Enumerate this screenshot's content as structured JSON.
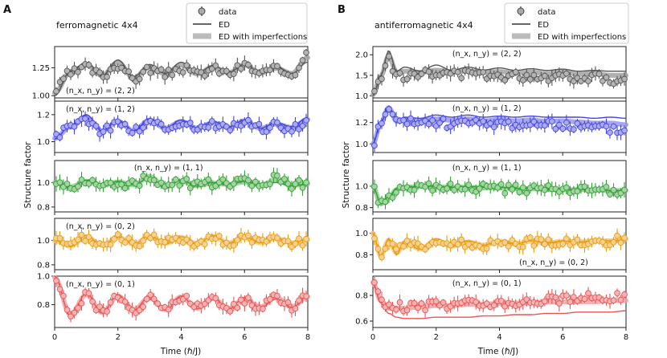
{
  "figure": {
    "panel_letters": [
      "A",
      "B"
    ],
    "legend": {
      "data_label": "data",
      "ed_label": "ED",
      "ed_imp_label": "ED with imperfections"
    },
    "ylabel": "Structure factor",
    "xlabel": "Time (ℏ/J)"
  },
  "chart_data": [
    {
      "type": "line",
      "title": "ferromagnetic 4x4",
      "xlabel": "Time (ℏ/J)",
      "ylabel": "Structure factor",
      "xlim": [
        0,
        8
      ],
      "x_ticks": [
        "0",
        "2",
        "4",
        "6",
        "8"
      ],
      "panels": [
        {
          "mode": "(n_x, n_y) = (2, 2)",
          "label_pos": "bottom-left",
          "ylim": [
            0.98,
            1.44
          ],
          "yticks": [
            1.0,
            1.25
          ],
          "ytick_labels": [
            "1.00",
            "1.25"
          ],
          "color": "#555555",
          "x": [
            0,
            0.5,
            1,
            1.5,
            2,
            2.5,
            3,
            3.5,
            4,
            4.5,
            5,
            5.5,
            6,
            6.5,
            7,
            7.5,
            8
          ],
          "ed": [
            1.0,
            1.22,
            1.3,
            1.18,
            1.32,
            1.17,
            1.28,
            1.2,
            1.3,
            1.2,
            1.27,
            1.21,
            1.28,
            1.21,
            1.26,
            1.2,
            1.3
          ],
          "data": [
            1.05,
            1.2,
            1.25,
            1.18,
            1.28,
            1.15,
            1.24,
            1.19,
            1.25,
            1.19,
            1.24,
            1.2,
            1.27,
            1.2,
            1.23,
            1.2,
            1.38
          ]
        },
        {
          "mode": "(n_x, n_y) = (1, 2)",
          "label_pos": "top-left",
          "ylim": [
            0.92,
            1.3
          ],
          "yticks": [
            1.0,
            1.2
          ],
          "ytick_labels": [
            "1.0",
            "1.2"
          ],
          "color": "#4444dd",
          "x": [
            0,
            0.5,
            1,
            1.5,
            2,
            2.5,
            3,
            3.5,
            4,
            4.5,
            5,
            5.5,
            6,
            6.5,
            7,
            7.5,
            8
          ],
          "ed": [
            1.02,
            1.12,
            1.2,
            1.08,
            1.16,
            1.08,
            1.17,
            1.1,
            1.16,
            1.1,
            1.15,
            1.11,
            1.16,
            1.1,
            1.14,
            1.11,
            1.18
          ],
          "data": [
            1.03,
            1.1,
            1.16,
            1.08,
            1.14,
            1.08,
            1.15,
            1.1,
            1.14,
            1.1,
            1.13,
            1.1,
            1.15,
            1.1,
            1.12,
            1.1,
            1.15
          ]
        },
        {
          "mode": "(n_x, n_y) = (1, 1)",
          "label_pos": "top-center",
          "ylim": [
            0.76,
            1.18
          ],
          "yticks": [
            0.8,
            1.0
          ],
          "ytick_labels": [
            "0.8",
            "1.0"
          ],
          "color": "#33a033",
          "x": [
            0,
            0.5,
            1,
            1.5,
            2,
            2.5,
            3,
            3.5,
            4,
            4.5,
            5,
            5.5,
            6,
            6.5,
            7,
            7.5,
            8
          ],
          "ed": [
            1.0,
            0.96,
            1.02,
            0.97,
            1.01,
            0.98,
            1.04,
            0.96,
            1.02,
            0.97,
            1.0,
            0.98,
            1.01,
            0.98,
            1.0,
            0.97,
            0.99
          ],
          "data": [
            1.0,
            0.97,
            1.0,
            0.98,
            1.0,
            0.98,
            1.06,
            0.97,
            1.0,
            0.98,
            0.99,
            0.99,
            1.0,
            0.98,
            1.04,
            0.98,
            0.99
          ]
        },
        {
          "mode": "(n_x, n_y) = (0, 2)",
          "label_pos": "top-left",
          "ylim": [
            0.76,
            1.18
          ],
          "yticks": [
            0.8,
            1.0
          ],
          "ytick_labels": [
            "0.8",
            "1.0"
          ],
          "color": "#e89b10",
          "x": [
            0,
            0.5,
            1,
            1.5,
            2,
            2.5,
            3,
            3.5,
            4,
            4.5,
            5,
            5.5,
            6,
            6.5,
            7,
            7.5,
            8
          ],
          "ed": [
            1.0,
            0.95,
            1.04,
            0.96,
            1.03,
            0.97,
            1.04,
            0.97,
            1.03,
            0.97,
            1.04,
            0.98,
            1.03,
            0.98,
            1.02,
            0.98,
            1.01
          ],
          "data": [
            0.99,
            0.96,
            1.02,
            0.96,
            1.02,
            0.97,
            1.02,
            0.98,
            1.02,
            0.98,
            1.02,
            0.98,
            1.02,
            0.98,
            1.01,
            0.98,
            1.0
          ]
        },
        {
          "mode": "(n_x, n_y) = (0, 1)",
          "label_pos": "top-left",
          "ylim": [
            0.64,
            1.0
          ],
          "yticks": [
            0.8,
            1.0
          ],
          "ytick_labels": [
            "0.8",
            "1.0"
          ],
          "color": "#e85555",
          "x": [
            0,
            0.5,
            1,
            1.5,
            2,
            2.5,
            3,
            3.5,
            4,
            4.5,
            5,
            5.5,
            6,
            6.5,
            7,
            7.5,
            8
          ],
          "ed": [
            1.0,
            0.72,
            0.88,
            0.74,
            0.87,
            0.76,
            0.86,
            0.76,
            0.86,
            0.77,
            0.85,
            0.77,
            0.85,
            0.78,
            0.84,
            0.78,
            0.86
          ],
          "data": [
            0.98,
            0.74,
            0.86,
            0.75,
            0.85,
            0.77,
            0.84,
            0.77,
            0.85,
            0.78,
            0.84,
            0.78,
            0.83,
            0.79,
            0.86,
            0.79,
            0.85
          ]
        }
      ]
    },
    {
      "type": "line",
      "title": "antiferromagnetic 4x4",
      "xlabel": "Time (ℏ/J)",
      "ylabel": "Structure factor",
      "xlim": [
        0,
        8
      ],
      "x_ticks": [
        "0",
        "2",
        "4",
        "6",
        "8"
      ],
      "panels": [
        {
          "mode": "(n_x, n_y) = (2, 2)",
          "label_pos": "top-center",
          "ylim": [
            0.95,
            2.2
          ],
          "yticks": [
            1.0,
            1.5,
            2.0
          ],
          "ytick_labels": [
            "1.0",
            "1.5",
            "2.0"
          ],
          "color": "#555555",
          "x": [
            0,
            0.25,
            0.5,
            0.75,
            1,
            1.5,
            2,
            2.5,
            3,
            3.5,
            4,
            4.5,
            5,
            5.5,
            6,
            6.5,
            7,
            7.5,
            8
          ],
          "ed": [
            1.0,
            1.5,
            2.1,
            1.6,
            1.7,
            1.6,
            1.75,
            1.62,
            1.7,
            1.63,
            1.68,
            1.62,
            1.66,
            1.62,
            1.65,
            1.6,
            1.62,
            1.6,
            1.6
          ],
          "data": [
            1.05,
            1.45,
            1.85,
            1.55,
            1.5,
            1.55,
            1.5,
            1.55,
            1.5,
            1.52,
            1.5,
            1.48,
            1.5,
            1.46,
            1.5,
            1.45,
            1.48,
            1.4,
            1.4
          ]
        },
        {
          "mode": "(n_x, n_y) = (1, 2)",
          "label_pos": "top-center",
          "ylim": [
            0.92,
            1.4
          ],
          "yticks": [
            1.0,
            1.2
          ],
          "ytick_labels": [
            "1.0",
            "1.2"
          ],
          "color": "#4444dd",
          "x": [
            0,
            0.25,
            0.5,
            0.75,
            1,
            1.5,
            2,
            2.5,
            3,
            3.5,
            4,
            4.5,
            5,
            5.5,
            6,
            6.5,
            7,
            7.5,
            8
          ],
          "ed": [
            1.0,
            1.2,
            1.35,
            1.22,
            1.25,
            1.24,
            1.27,
            1.25,
            1.27,
            1.25,
            1.26,
            1.25,
            1.26,
            1.25,
            1.25,
            1.25,
            1.24,
            1.25,
            1.24
          ],
          "data": [
            1.0,
            1.18,
            1.33,
            1.2,
            1.2,
            1.2,
            1.2,
            1.19,
            1.2,
            1.18,
            1.2,
            1.18,
            1.19,
            1.17,
            1.18,
            1.16,
            1.15,
            1.14,
            1.12
          ]
        },
        {
          "mode": "(n_x, n_y) = (1, 1)",
          "label_pos": "top-center",
          "ylim": [
            0.76,
            1.24
          ],
          "yticks": [
            0.8,
            1.0
          ],
          "ytick_labels": [
            "0.8",
            "1.0"
          ],
          "color": "#33a033",
          "x": [
            0,
            0.25,
            0.5,
            0.75,
            1,
            1.5,
            2,
            2.5,
            3,
            3.5,
            4,
            4.5,
            5,
            5.5,
            6,
            6.5,
            7,
            7.5,
            8
          ],
          "ed": [
            1.0,
            0.84,
            0.9,
            0.98,
            0.99,
            1.0,
            1.0,
            0.99,
            1.0,
            0.99,
            0.99,
            0.98,
            0.98,
            0.97,
            0.97,
            0.97,
            0.97,
            0.96,
            0.96
          ],
          "data": [
            1.0,
            0.83,
            0.88,
            0.96,
            0.98,
            1.0,
            0.99,
            0.99,
            0.98,
            0.98,
            0.98,
            0.97,
            0.97,
            0.97,
            0.96,
            0.97,
            0.96,
            0.96,
            0.96
          ]
        },
        {
          "mode": "(n_x, n_y) = (0, 2)",
          "label_pos": "bottom-right",
          "ylim": [
            0.66,
            1.14
          ],
          "yticks": [
            0.8,
            1.0
          ],
          "ytick_labels": [
            "0.8",
            "1.0"
          ],
          "color": "#e89b10",
          "x": [
            0,
            0.25,
            0.5,
            0.75,
            1,
            1.5,
            2,
            2.5,
            3,
            3.5,
            4,
            4.5,
            5,
            5.5,
            6,
            6.5,
            7,
            7.5,
            8
          ],
          "ed": [
            1.0,
            0.78,
            0.95,
            0.8,
            0.93,
            0.85,
            0.95,
            0.88,
            0.93,
            0.89,
            0.93,
            0.9,
            0.93,
            0.91,
            0.93,
            0.92,
            0.93,
            0.93,
            0.94
          ],
          "data": [
            1.0,
            0.8,
            0.92,
            0.83,
            0.9,
            0.86,
            0.92,
            0.88,
            0.91,
            0.89,
            0.92,
            0.9,
            0.92,
            0.91,
            0.92,
            0.92,
            0.93,
            0.93,
            0.95
          ]
        },
        {
          "mode": "(n_x, n_y) = (0, 1)",
          "label_pos": "top-center",
          "ylim": [
            0.55,
            0.95
          ],
          "yticks": [
            0.6,
            0.8
          ],
          "ytick_labels": [
            "0.6",
            "0.8"
          ],
          "color": "#e85555",
          "x": [
            0,
            0.25,
            0.5,
            0.75,
            1,
            1.5,
            2,
            2.5,
            3,
            3.5,
            4,
            4.5,
            5,
            5.5,
            6,
            6.5,
            7,
            7.5,
            8
          ],
          "ed": [
            0.9,
            0.74,
            0.66,
            0.63,
            0.62,
            0.62,
            0.63,
            0.63,
            0.63,
            0.64,
            0.64,
            0.65,
            0.65,
            0.66,
            0.66,
            0.67,
            0.67,
            0.67,
            0.68
          ],
          "ed_imp": [
            0.9,
            0.76,
            0.7,
            0.7,
            0.7,
            0.71,
            0.72,
            0.72,
            0.73,
            0.73,
            0.74,
            0.74,
            0.74,
            0.75,
            0.75,
            0.75,
            0.75,
            0.76,
            0.76
          ],
          "data": [
            0.9,
            0.77,
            0.71,
            0.71,
            0.71,
            0.72,
            0.72,
            0.73,
            0.74,
            0.74,
            0.75,
            0.75,
            0.76,
            0.77,
            0.77,
            0.78,
            0.79,
            0.79,
            0.8
          ]
        }
      ]
    }
  ]
}
